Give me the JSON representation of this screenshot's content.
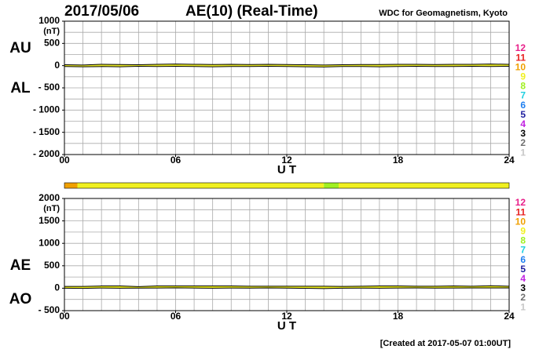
{
  "header": {
    "date": "2017/05/06",
    "title": "AE(10) (Real-Time)",
    "source": "WDC for Geomagnetism, Kyoto"
  },
  "footer": "[Created at 2017-05-07 01:00UT]",
  "levels": [
    {
      "value": 12,
      "color": "#e8208a"
    },
    {
      "value": 11,
      "color": "#e82020"
    },
    {
      "value": 10,
      "color": "#f0a000"
    },
    {
      "value": 9,
      "color": "#f0f020"
    },
    {
      "value": 8,
      "color": "#a0f020"
    },
    {
      "value": 7,
      "color": "#20d0e0"
    },
    {
      "value": 6,
      "color": "#2080f0"
    },
    {
      "value": 5,
      "color": "#2020a0"
    },
    {
      "value": 4,
      "color": "#c020e0"
    },
    {
      "value": 3,
      "color": "#000000"
    },
    {
      "value": 2,
      "color": "#707070"
    },
    {
      "value": 1,
      "color": "#c8c8c8"
    }
  ],
  "coverage": [
    {
      "start": 0,
      "end": 0.7,
      "level": 10
    },
    {
      "start": 0.7,
      "end": 14,
      "level": 9
    },
    {
      "start": 14,
      "end": 14.8,
      "level": 8
    },
    {
      "start": 14.8,
      "end": 24,
      "level": 9
    }
  ],
  "chart_data": [
    {
      "type": "line",
      "y_unit": "(nT)",
      "x_label": "U T",
      "fill": "#f0f020",
      "x": [
        0,
        1,
        2,
        3,
        4,
        5,
        6,
        7,
        8,
        9,
        10,
        11,
        12,
        13,
        14,
        15,
        16,
        17,
        18,
        19,
        20,
        21,
        22,
        23,
        24
      ],
      "series": [
        {
          "name": "AU",
          "color": "#000000",
          "values": [
            20,
            15,
            30,
            25,
            20,
            30,
            35,
            30,
            25,
            30,
            25,
            30,
            25,
            20,
            15,
            20,
            25,
            25,
            30,
            30,
            25,
            30,
            30,
            35,
            30
          ]
        },
        {
          "name": "AL",
          "color": "#000000",
          "values": [
            -20,
            -25,
            -20,
            -25,
            -15,
            -20,
            -15,
            -20,
            -25,
            -20,
            -20,
            -15,
            -20,
            -25,
            -30,
            -20,
            -20,
            -25,
            -20,
            -15,
            -20,
            -20,
            -15,
            -20,
            -15
          ]
        }
      ],
      "xlim": [
        0,
        24
      ],
      "ylim": [
        -2000,
        1000
      ],
      "xticks": [
        {
          "value": 0,
          "label": "00"
        },
        {
          "value": 6,
          "label": "06"
        },
        12,
        18,
        24
      ],
      "yticks": [
        1000,
        500,
        0,
        {
          "value": -500,
          "label": "- 500"
        },
        {
          "value": -1000,
          "label": "- 1000"
        },
        {
          "value": -1500,
          "label": "- 1500"
        },
        {
          "value": -2000,
          "label": "- 2000"
        }
      ],
      "xgrid": [
        0,
        1,
        2,
        3,
        4,
        5,
        6,
        7,
        8,
        9,
        10,
        11,
        12,
        13,
        14,
        15,
        16,
        17,
        18,
        19,
        20,
        21,
        22,
        23,
        24
      ],
      "ygrid": [
        1000,
        750,
        500,
        250,
        0,
        -250,
        -500,
        -750,
        -1000,
        -1250,
        -1500,
        -1750,
        -2000
      ]
    },
    {
      "type": "line",
      "y_unit": "(nT)",
      "x_label": "U T",
      "fill": "#f0f020",
      "x": [
        0,
        1,
        2,
        3,
        4,
        5,
        6,
        7,
        8,
        9,
        10,
        11,
        12,
        13,
        14,
        15,
        16,
        17,
        18,
        19,
        20,
        21,
        22,
        23,
        24
      ],
      "series": [
        {
          "name": "AE",
          "color": "#000000",
          "values": [
            40,
            40,
            50,
            50,
            35,
            50,
            50,
            50,
            50,
            50,
            45,
            45,
            45,
            45,
            45,
            40,
            45,
            50,
            50,
            45,
            45,
            50,
            45,
            55,
            45
          ]
        },
        {
          "name": "AO",
          "color": "#000000",
          "values": [
            0,
            -5,
            5,
            0,
            2.5,
            5,
            10,
            5,
            0,
            5,
            2.5,
            7.5,
            2.5,
            -2.5,
            -7.5,
            0,
            2.5,
            0,
            5,
            7.5,
            2.5,
            5,
            7.5,
            7.5,
            7.5
          ]
        }
      ],
      "xlim": [
        0,
        24
      ],
      "ylim": [
        -500,
        2000
      ],
      "xticks": [
        {
          "value": 0,
          "label": "00"
        },
        {
          "value": 6,
          "label": "06"
        },
        12,
        18,
        24
      ],
      "yticks": [
        2000,
        1500,
        1000,
        500,
        0,
        {
          "value": -500,
          "label": "- 500"
        }
      ],
      "xgrid": [
        0,
        1,
        2,
        3,
        4,
        5,
        6,
        7,
        8,
        9,
        10,
        11,
        12,
        13,
        14,
        15,
        16,
        17,
        18,
        19,
        20,
        21,
        22,
        23,
        24
      ],
      "ygrid": [
        2000,
        1750,
        1500,
        1250,
        1000,
        750,
        500,
        250,
        0,
        -250,
        -500
      ]
    }
  ]
}
